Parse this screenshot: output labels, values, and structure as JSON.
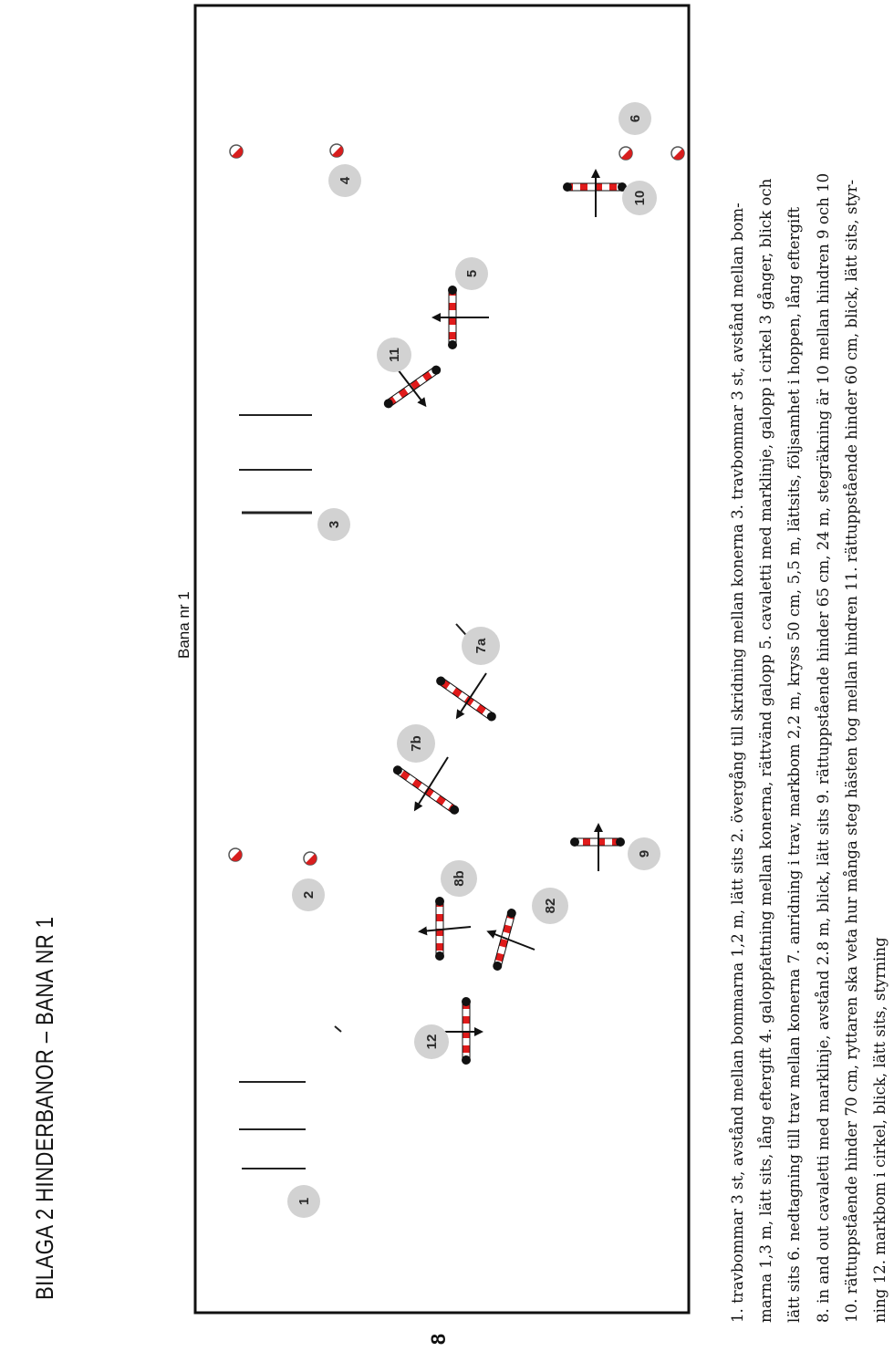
{
  "header": {
    "text": "BILAGA 2    HINDERBANOR – BANA NR 1",
    "page_number": "8"
  },
  "course": {
    "title": "Bana nr 1",
    "markers": {
      "m1": "1",
      "m2": "2",
      "m3": "3",
      "m4": "4",
      "m5": "5",
      "m6": "6",
      "m7a": "7a",
      "m7b": "7b",
      "m8b": "8b",
      "m82": "82",
      "m9": "9",
      "m10": "10",
      "m11": "11",
      "m12": "12"
    },
    "colors": {
      "pole_red": "#e01b1b",
      "pole_black": "#111111",
      "marker_gray": "#d2d2d2",
      "cone_red": "#d81e1e"
    }
  },
  "legend": {
    "lines": [
      "1. travbommar 3 st, avstånd mellan bommarna 1,2 m, lätt sits   2. övergång till skridning mellan konerna   3. travbommar 3 st, avstånd mellan bom-",
      "marna 1,3 m, lätt sits, lång eftergift   4. galoppfattning mellan konerna, rättvänd galopp   5. cavaletti med marklinje, galopp i cirkel 3 gånger, blick och",
      "lätt sits   6. nedtagning till trav mellan konerna   7. anridning i trav, markbom 2,2 m, kryss 50 cm, 5,5 m, lättsits, följsamhet i hoppen, lång eftergift",
      "8. in and out cavaletti med marklinje, avstånd 2.8 m, blick, lätt sits   9. rättuppstående hinder 65 cm, 24 m, stegräkning är 10 mellan hindren 9 och 10",
      "10. rättuppstående hinder 70 cm, ryttaren ska veta hur många steg hästen tog mellan hindren   11. rättuppstående hinder 60 cm, blick, lätt sits, styr-",
      "ning   12. markbom i cirkel, blick, lätt sits, styrning"
    ]
  }
}
